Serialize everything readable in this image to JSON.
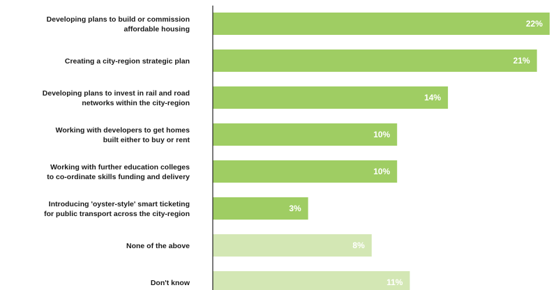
{
  "chart_data": {
    "type": "bar",
    "orientation": "horizontal",
    "categories": [
      "Developing plans to build or commission\naffordable housing",
      "Creating a city-region strategic plan",
      "Developing plans to invest in rail and road\nnetworks within the city-region",
      "Working with developers to get homes\nbuilt either to buy or rent",
      "Working with further education colleges\nto co-ordinate skills funding and delivery",
      "Introducing 'oyster-style' smart ticketing\nfor public transport across the city-region",
      "None of the above",
      "Don't know"
    ],
    "values": [
      22,
      21,
      14,
      10,
      10,
      3,
      8,
      11
    ],
    "value_labels": [
      "22%",
      "21%",
      "14%",
      "10%",
      "10%",
      "3%",
      "8%",
      "11%"
    ],
    "colors": [
      "#9fcd63",
      "#9fcd63",
      "#9fcd63",
      "#9fcd63",
      "#9fcd63",
      "#9fcd63",
      "#d3e7b4",
      "#d3e7b4"
    ],
    "xlim": [
      -4.5,
      22.5
    ],
    "grid": false,
    "legend": "none"
  }
}
